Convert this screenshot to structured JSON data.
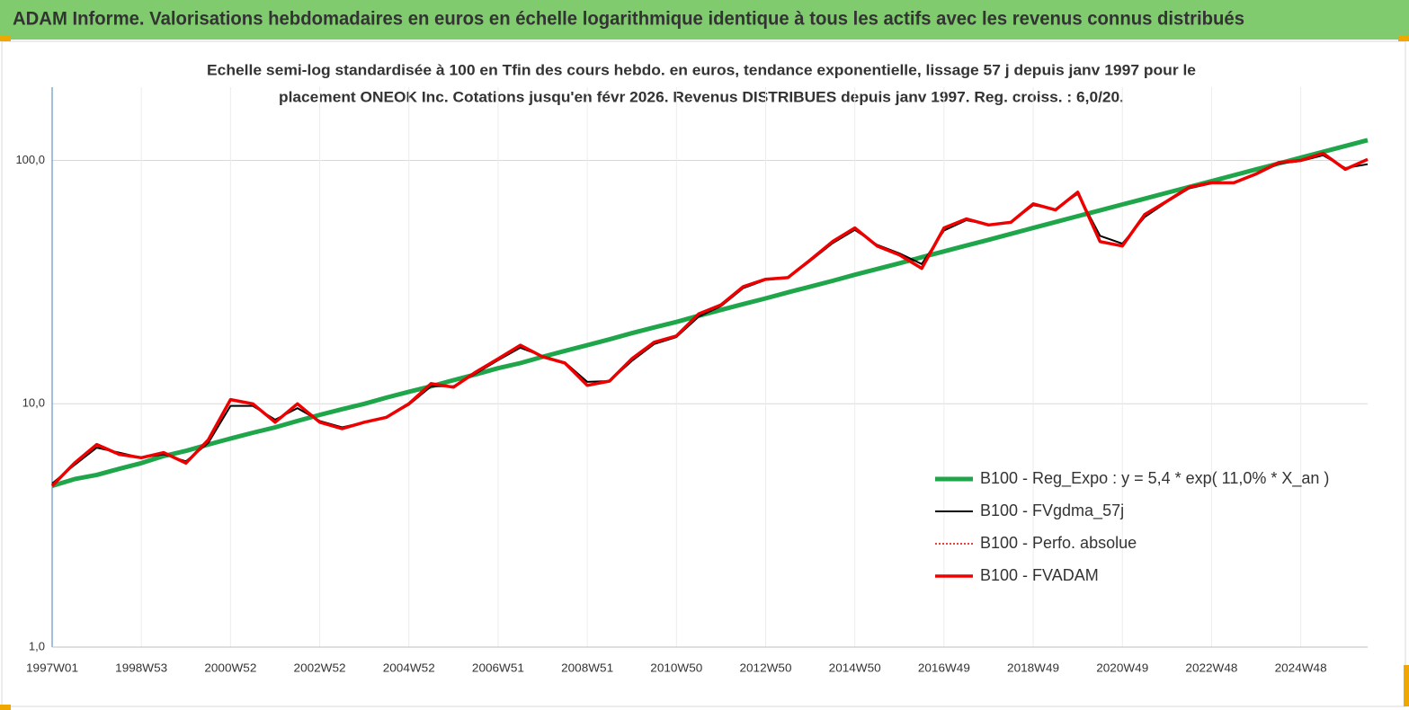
{
  "chart_data": {
    "type": "line",
    "header": "ADAM Informe. Valorisations hebdomadaires en euros en échelle logarithmique identique à tous les actifs avec les revenus connus distribués",
    "title_lines": [
      "Echelle semi-log standardisée à 100 en Tfin des cours hebdo. en euros, tendance exponentielle, lissage 57 j depuis janv 1997 pour le",
      "placement ONEOK Inc. Cotations jusqu'en févr 2026. Revenus DISTRIBUES depuis janv 1997. Reg. croiss. : 6,0/20."
    ],
    "log_scale": true,
    "ylim": [
      1,
      200
    ],
    "yticks": [
      {
        "value": 1,
        "label": "1,0"
      },
      {
        "value": 10,
        "label": "10,0"
      },
      {
        "value": 100,
        "label": "100,0"
      }
    ],
    "grid": true,
    "legend": "right",
    "categories": [
      "1997W01",
      null,
      null,
      null,
      "1998W53",
      null,
      null,
      null,
      "2000W52",
      null,
      null,
      null,
      "2002W52",
      null,
      null,
      null,
      "2004W52",
      null,
      null,
      null,
      "2006W51",
      null,
      null,
      null,
      "2008W51",
      null,
      null,
      null,
      "2010W50",
      null,
      null,
      null,
      "2012W50",
      null,
      null,
      null,
      "2014W50",
      null,
      null,
      null,
      "2016W49",
      null,
      null,
      null,
      "2018W49",
      null,
      null,
      null,
      "2020W49",
      null,
      null,
      null,
      "2022W48",
      null,
      null,
      null,
      "2024W48",
      null,
      null,
      null
    ],
    "series": [
      {
        "name": "B100 - Reg_Expo : y = 5,4 * exp( 11,0% *  X_an )",
        "color": "#1fa64a",
        "width": 5,
        "dash": "none",
        "values": [
          4.6,
          4.9,
          5.1,
          5.4,
          5.7,
          6.1,
          6.4,
          6.8,
          7.2,
          7.6,
          8.0,
          8.5,
          9.0,
          9.5,
          10.0,
          10.6,
          11.2,
          11.8,
          12.5,
          13.2,
          14.0,
          14.7,
          15.6,
          16.5,
          17.4,
          18.4,
          19.5,
          20.6,
          21.7,
          23.0,
          24.3,
          25.7,
          27.1,
          28.7,
          30.3,
          32.0,
          33.9,
          35.8,
          37.8,
          40.0,
          42.3,
          44.7,
          47.2,
          49.9,
          52.8,
          55.8,
          59.0,
          62.3,
          65.9,
          69.6,
          73.6,
          77.8,
          82.2,
          86.9,
          91.9,
          97.1,
          102.7,
          108.5,
          114.7,
          121.2
        ]
      },
      {
        "name": "B100 - FVgdma_57j",
        "color": "#000000",
        "width": 2,
        "dash": "none",
        "values": [
          4.7,
          5.6,
          6.6,
          6.3,
          6.0,
          6.2,
          5.8,
          6.9,
          9.8,
          9.8,
          8.6,
          9.6,
          8.5,
          8.0,
          8.4,
          8.8,
          9.9,
          11.8,
          11.8,
          13.3,
          15.1,
          17.0,
          15.7,
          14.8,
          12.3,
          12.4,
          15.0,
          17.6,
          18.8,
          22.8,
          25.2,
          29.9,
          32.3,
          32.9,
          38.6,
          45.7,
          51.8,
          45.0,
          41.5,
          37.5,
          51.5,
          56.8,
          54.5,
          55.6,
          65.5,
          63.0,
          73.0,
          49.0,
          45.5,
          58.5,
          67.5,
          76.8,
          80.5,
          81.0,
          87.5,
          97.0,
          99.5,
          105.0,
          93.0,
          96.5
        ]
      },
      {
        "name": "B100 - Perfo. absolue",
        "color": "#e00000",
        "width": 1.5,
        "dash": "2 2",
        "values": [
          4.6,
          5.7,
          6.8,
          6.2,
          6.0,
          6.3,
          5.7,
          7.1,
          10.4,
          10.0,
          8.4,
          10.0,
          8.4,
          7.9,
          8.4,
          8.8,
          10.0,
          12.1,
          11.7,
          13.5,
          15.3,
          17.4,
          15.6,
          14.7,
          11.9,
          12.4,
          15.3,
          17.9,
          19.0,
          23.4,
          25.5,
          30.3,
          32.5,
          33.0,
          39.0,
          46.4,
          52.8,
          44.5,
          40.9,
          36.0,
          52.8,
          57.5,
          54.3,
          55.7,
          66.3,
          62.6,
          74.0,
          46.4,
          44.5,
          59.9,
          68.0,
          77.7,
          80.9,
          80.9,
          88.0,
          98.0,
          100.0,
          107.0,
          91.9,
          101.0
        ]
      },
      {
        "name": "B100 - FVADAM",
        "color": "#ee0000",
        "width": 3.5,
        "dash": "none",
        "values": [
          4.6,
          5.7,
          6.8,
          6.2,
          6.0,
          6.3,
          5.7,
          7.1,
          10.4,
          10.0,
          8.4,
          10.0,
          8.4,
          7.9,
          8.4,
          8.8,
          10.0,
          12.1,
          11.7,
          13.5,
          15.3,
          17.4,
          15.6,
          14.7,
          11.9,
          12.4,
          15.3,
          17.9,
          19.0,
          23.4,
          25.5,
          30.3,
          32.5,
          33.0,
          39.0,
          46.4,
          52.8,
          44.5,
          40.9,
          36.0,
          52.8,
          57.5,
          54.3,
          55.7,
          66.3,
          62.6,
          74.0,
          46.4,
          44.5,
          59.9,
          68.0,
          77.7,
          80.9,
          80.9,
          88.0,
          98.0,
          100.0,
          107.0,
          91.9,
          101.0
        ]
      }
    ]
  }
}
